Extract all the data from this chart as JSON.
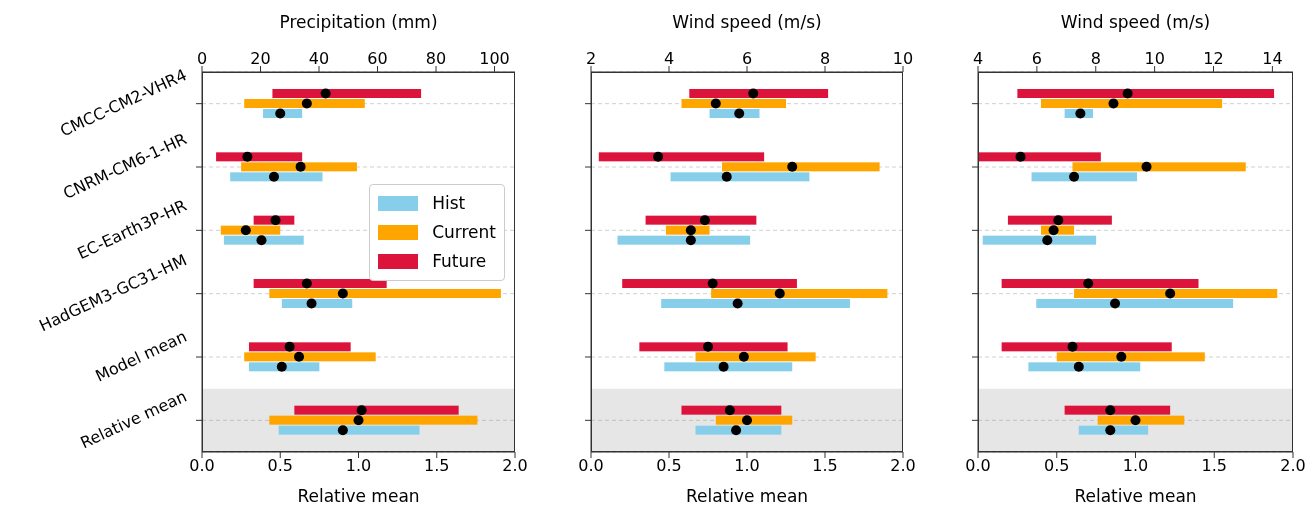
{
  "chart_data": [
    {
      "type": "bar",
      "orientation": "horizontal",
      "x2label": "Precipitation (mm)",
      "xlabel": "Relative mean",
      "categories": [
        "CMCC-CM2-VHR4",
        "CNRM-CM6-1-HR",
        "EC-Earth3P-HR",
        "HadGEM3-GC31-HM",
        "Model mean",
        "Relative mean"
      ],
      "xlim": [
        0,
        2
      ],
      "xticks": [
        {
          "value": 0,
          "label": "0.0"
        },
        {
          "value": 0.5,
          "label": "0.5"
        },
        {
          "value": 1,
          "label": "1.0"
        },
        {
          "value": 1.5,
          "label": "1.5"
        },
        {
          "value": 2,
          "label": "2.0"
        }
      ],
      "x2lim": [
        0,
        107
      ],
      "x2ticks": [
        0,
        20,
        40,
        60,
        80,
        100
      ],
      "grid": "y",
      "legend": "center right",
      "bands": [
        {
          "axis": "y",
          "from": "Relative mean",
          "to": "Relative mean",
          "color": "#808080"
        }
      ],
      "series": [
        {
          "name": "Hist",
          "color": "#87ceeb",
          "base": [
            0.39,
            0.18,
            0.14,
            0.51,
            0.3,
            0.49
          ],
          "values": [
            0.25,
            0.59,
            0.51,
            0.45,
            0.45,
            0.9
          ]
        },
        {
          "name": "Current",
          "color": "#ffa500",
          "base": [
            0.27,
            0.25,
            0.12,
            0.43,
            0.27,
            0.43
          ],
          "values": [
            0.77,
            0.74,
            0.38,
            1.48,
            0.84,
            1.33
          ]
        },
        {
          "name": "Future",
          "color": "#dc143c",
          "base": [
            0.45,
            0.09,
            0.33,
            0.33,
            0.3,
            0.59
          ],
          "values": [
            0.95,
            0.55,
            0.26,
            0.85,
            0.65,
            1.05
          ]
        },
        {
          "type": "scatter",
          "color": "#000000",
          "marker": "circle",
          "values": [
            0.5,
            0.46,
            0.38,
            0.7,
            0.51,
            0.9
          ]
        },
        {
          "type": "scatter",
          "color": "#000000",
          "marker": "circle",
          "values": [
            0.67,
            0.63,
            0.28,
            0.9,
            0.62,
            1.0
          ]
        },
        {
          "type": "scatter",
          "color": "#000000",
          "marker": "circle",
          "values": [
            0.79,
            0.29,
            0.47,
            0.67,
            0.56,
            1.02
          ]
        }
      ]
    },
    {
      "type": "bar",
      "orientation": "horizontal",
      "x2label": "Wind speed (m/s)",
      "xlabel": "Relative mean",
      "categories": [
        "CMCC-CM2-VHR4",
        "CNRM-CM6-1-HR",
        "EC-Earth3P-HR",
        "HadGEM3-GC31-HM",
        "Model mean",
        "Relative mean"
      ],
      "xlim": [
        0,
        2
      ],
      "xticks": [
        {
          "value": 0,
          "label": "0.0"
        },
        {
          "value": 0.5,
          "label": "0.5"
        },
        {
          "value": 1,
          "label": "1.0"
        },
        {
          "value": 1.5,
          "label": "1.5"
        },
        {
          "value": 2,
          "label": "2.0"
        }
      ],
      "x2lim": [
        2,
        10
      ],
      "x2ticks": [
        2,
        4,
        6,
        8,
        10
      ],
      "grid": "y",
      "tick_labels": "x",
      "bands": [
        {
          "axis": "y",
          "from": "Relative mean",
          "to": "Relative mean",
          "color": "#808080"
        }
      ],
      "series": [
        {
          "color": "#87ceeb",
          "base": [
            0.76,
            0.51,
            0.17,
            0.45,
            0.47,
            0.67
          ],
          "values": [
            0.32,
            0.89,
            0.85,
            1.21,
            0.82,
            0.55
          ]
        },
        {
          "color": "#ffa500",
          "base": [
            0.58,
            0.84,
            0.48,
            0.77,
            0.67,
            0.8
          ],
          "values": [
            0.67,
            1.01,
            0.28,
            1.13,
            0.77,
            0.49
          ]
        },
        {
          "color": "#dc143c",
          "base": [
            0.63,
            0.05,
            0.35,
            0.2,
            0.31,
            0.58
          ],
          "values": [
            0.89,
            1.06,
            0.71,
            1.12,
            0.95,
            0.64
          ]
        },
        {
          "type": "scatter",
          "color": "#000000",
          "marker": "circle",
          "values": [
            0.95,
            0.87,
            0.64,
            0.94,
            0.85,
            0.93
          ]
        },
        {
          "type": "scatter",
          "color": "#000000",
          "marker": "circle",
          "values": [
            0.8,
            1.29,
            0.64,
            1.21,
            0.98,
            1.0
          ]
        },
        {
          "type": "scatter",
          "color": "#000000",
          "marker": "circle",
          "values": [
            1.04,
            0.43,
            0.73,
            0.78,
            0.75,
            0.89
          ]
        }
      ]
    },
    {
      "type": "bar",
      "orientation": "horizontal",
      "x2label": "Wind speed (m/s)",
      "xlabel": "Relative mean",
      "categories": [
        "CMCC-CM2-VHR4",
        "CNRM-CM6-1-HR",
        "EC-Earth3P-HR",
        "HadGEM3-GC31-HM",
        "Model mean",
        "Relative mean"
      ],
      "xlim": [
        0,
        2
      ],
      "xticks": [
        {
          "value": 0,
          "label": "0.0"
        },
        {
          "value": 0.5,
          "label": "0.5"
        },
        {
          "value": 1,
          "label": "1.0"
        },
        {
          "value": 1.5,
          "label": "1.5"
        },
        {
          "value": 2,
          "label": "2.0"
        }
      ],
      "x2lim": [
        4,
        14.7
      ],
      "x2ticks": [
        4,
        6,
        8,
        10,
        12,
        14
      ],
      "grid": "y",
      "tick_labels": "x",
      "bands": [
        {
          "axis": "y",
          "from": "Relative mean",
          "to": "Relative mean",
          "color": "#808080"
        }
      ],
      "series": [
        {
          "color": "#87ceeb",
          "base": [
            0.55,
            0.34,
            0.03,
            0.37,
            0.32,
            0.64
          ],
          "values": [
            0.18,
            0.67,
            0.72,
            1.25,
            0.71,
            0.44
          ]
        },
        {
          "color": "#ffa500",
          "base": [
            0.4,
            0.6,
            0.4,
            0.61,
            0.5,
            0.76
          ],
          "values": [
            1.15,
            1.1,
            0.21,
            1.29,
            0.94,
            0.55
          ]
        },
        {
          "color": "#dc143c",
          "base": [
            0.25,
            0.0,
            0.19,
            0.15,
            0.15,
            0.55
          ],
          "values": [
            1.63,
            0.78,
            0.66,
            1.25,
            1.08,
            0.67
          ]
        },
        {
          "type": "scatter",
          "color": "#000000",
          "marker": "circle",
          "values": [
            0.65,
            0.61,
            0.44,
            0.87,
            0.64,
            0.84
          ]
        },
        {
          "type": "scatter",
          "color": "#000000",
          "marker": "circle",
          "values": [
            0.86,
            1.07,
            0.48,
            1.22,
            0.91,
            1.0
          ]
        },
        {
          "type": "scatter",
          "color": "#000000",
          "marker": "circle",
          "values": [
            0.95,
            0.27,
            0.51,
            0.7,
            0.6,
            0.84
          ]
        }
      ]
    }
  ]
}
